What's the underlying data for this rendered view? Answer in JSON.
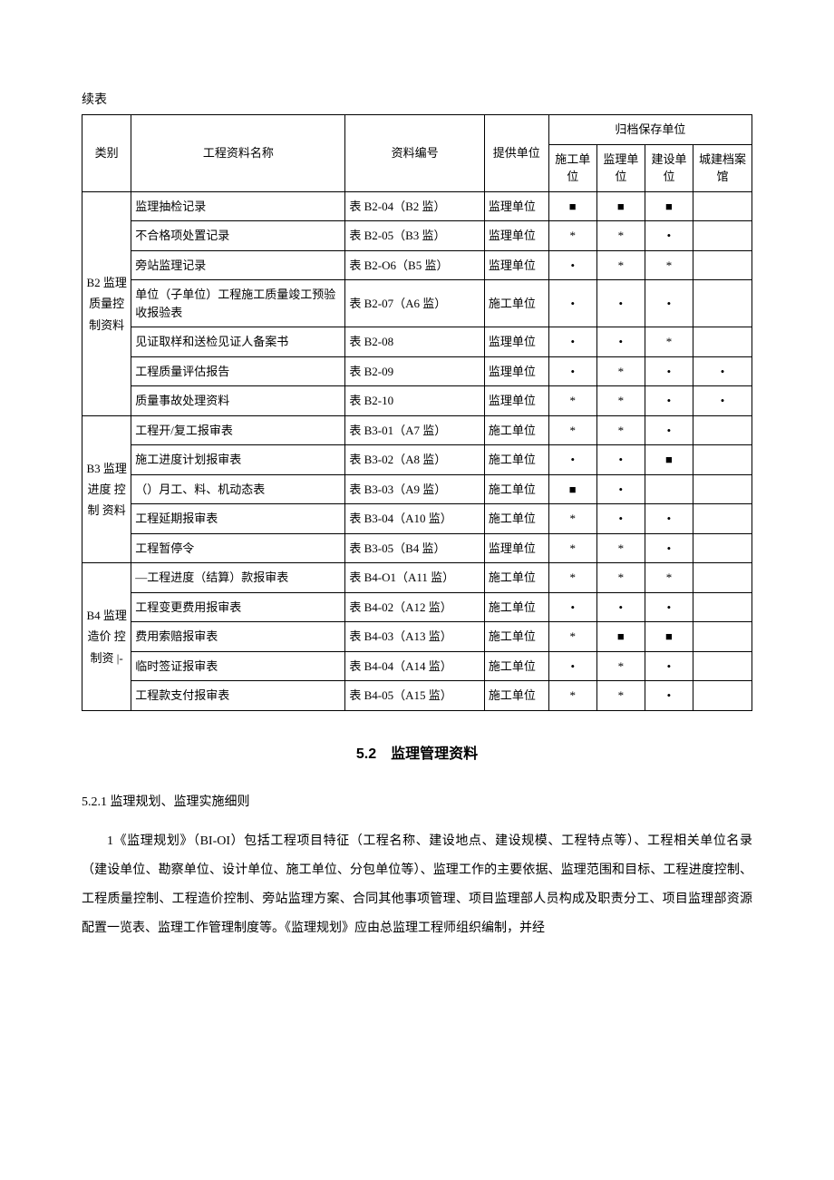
{
  "continued_label": "续表",
  "headers": {
    "category": "类别",
    "name": "工程资料名称",
    "code": "资料编号",
    "provider": "提供单位",
    "archive_group": "归档保存单位",
    "archive_cols": [
      "施工单位",
      "监理单位",
      "建设单位",
      "城建档案馆"
    ]
  },
  "categories": [
    {
      "label": "B2 监理质量控制资料",
      "rows": [
        {
          "name": "监理抽检记录",
          "code": "表 B2-04（B2 监）",
          "provider": "监理单位",
          "marks": [
            "■",
            "■",
            "■",
            ""
          ]
        },
        {
          "name": "不合格项处置记录",
          "code": "表 B2-05（B3 监）",
          "provider": "监理单位",
          "marks": [
            "*",
            "*",
            "•",
            ""
          ]
        },
        {
          "name": "旁站监理记录",
          "code": "表 B2-O6（B5 监）",
          "provider": "监理单位",
          "marks": [
            "•",
            "*",
            "*",
            ""
          ]
        },
        {
          "name": "单位（子单位）工程施工质量竣工预验收报验表",
          "code": "表 B2-07（A6 监）",
          "provider": "施工单位",
          "marks": [
            "•",
            "•",
            "•",
            ""
          ]
        },
        {
          "name": "见证取样和送检见证人备案书",
          "code": "表 B2-08",
          "provider": "监理单位",
          "marks": [
            "•",
            "•",
            "*",
            ""
          ]
        },
        {
          "name": "工程质量评估报告",
          "code": "表 B2-09",
          "provider": "监理单位",
          "marks": [
            "•",
            "*",
            "•",
            "•"
          ]
        },
        {
          "name": "质量事故处理资料",
          "code": "表 B2-10",
          "provider": "监理单位",
          "marks": [
            "*",
            "*",
            "•",
            "•"
          ]
        }
      ]
    },
    {
      "label": "B3 监理 进度 控制 资料",
      "rows": [
        {
          "name": "工程开/复工报审表",
          "code": "表 B3-01（A7 监）",
          "provider": "施工单位",
          "marks": [
            "*",
            "*",
            "•",
            ""
          ]
        },
        {
          "name": "施工进度计划报审表",
          "code": "表 B3-02（A8 监）",
          "provider": "施工单位",
          "marks": [
            "•",
            "•",
            "■",
            ""
          ]
        },
        {
          "name": "（）月工、料、机动态表",
          "code": "表 B3-03（A9 监）",
          "provider": "施工单位",
          "marks": [
            "■",
            "•",
            "",
            ""
          ]
        },
        {
          "name": "工程延期报审表",
          "code": "表 B3-04（A10 监）",
          "provider": "施工单位",
          "marks": [
            "*",
            "•",
            "•",
            ""
          ]
        },
        {
          "name": "工程暂停令",
          "code": "表 B3-05（B4 监）",
          "provider": "监理单位",
          "marks": [
            "*",
            "*",
            "•",
            ""
          ]
        }
      ]
    },
    {
      "label": "B4 监理 造价 控制资 |-",
      "rows": [
        {
          "name": "—工程进度（结算）款报审表",
          "code": "表 B4-O1（A11 监）",
          "provider": "施工单位",
          "marks": [
            "*",
            "*",
            "*",
            ""
          ]
        },
        {
          "name": "工程变更费用报审表",
          "code": "表 B4-02（A12 监）",
          "provider": "施工单位",
          "marks": [
            "•",
            "•",
            "•",
            ""
          ]
        },
        {
          "name": "费用索赔报审表",
          "code": "表 B4-03（A13 监）",
          "provider": "施工单位",
          "marks": [
            "*",
            "■",
            "■",
            ""
          ]
        },
        {
          "name": "临时签证报审表",
          "code": "表 B4-04（A14 监）",
          "provider": "施工单位",
          "marks": [
            "•",
            "*",
            "•",
            ""
          ]
        },
        {
          "name": "工程款支付报审表",
          "code": "表 B4-05（A15 监）",
          "provider": "施工单位",
          "marks": [
            "*",
            "*",
            "•",
            ""
          ]
        }
      ]
    }
  ],
  "section_title": "5.2　监理管理资料",
  "subsection_title": "5.2.1 监理规划、监理实施细则",
  "body_text": "1《监理规划》（BI-OI）包括工程项目特征（工程名称、建设地点、建设规模、工程特点等）、工程相关单位名录（建设单位、勘察单位、设计单位、施工单位、分包单位等）、监理工作的主要依据、监理范围和目标、工程进度控制、工程质量控制、工程造价控制、旁站监理方案、合同其他事项管理、项目监理部人员构成及职责分工、项目监理部资源配置一览表、监理工作管理制度等。《监理规划》应由总监理工程师组织编制，并经"
}
